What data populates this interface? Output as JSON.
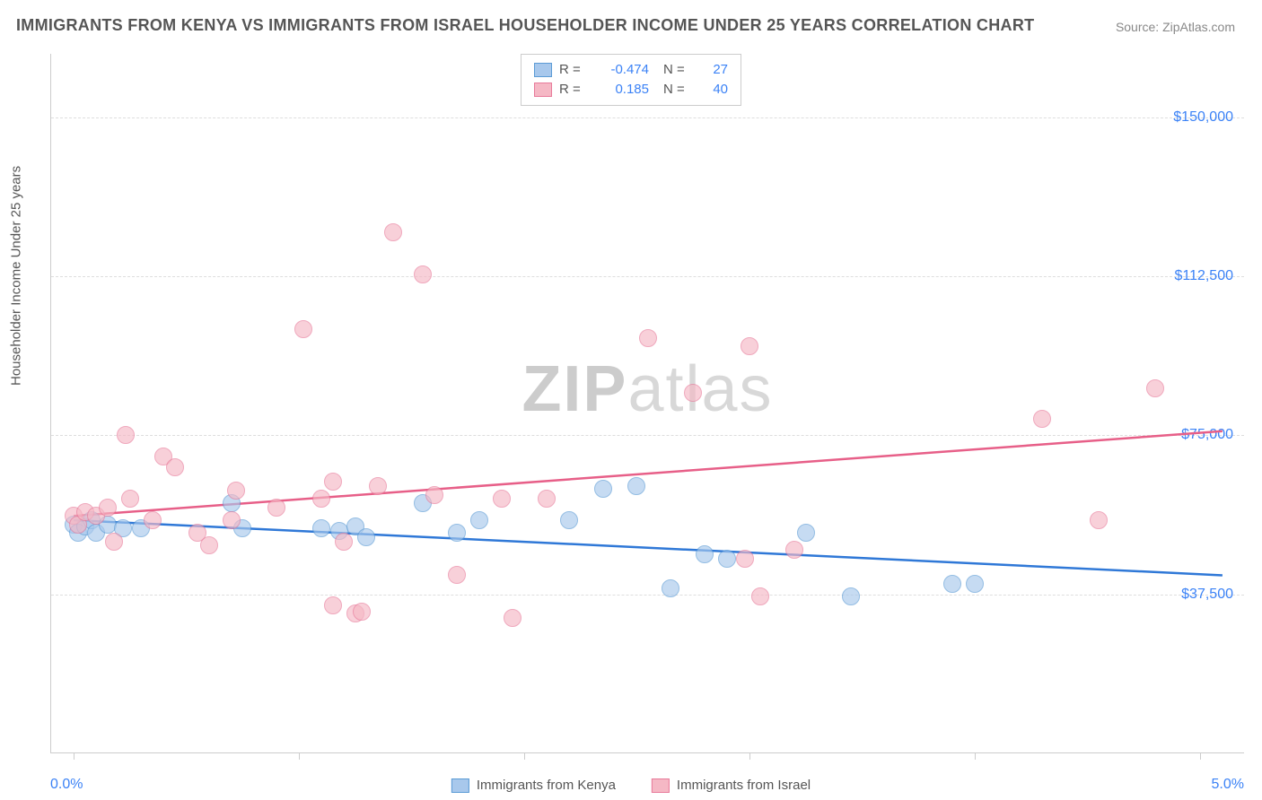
{
  "title": "IMMIGRANTS FROM KENYA VS IMMIGRANTS FROM ISRAEL HOUSEHOLDER INCOME UNDER 25 YEARS CORRELATION CHART",
  "source": "Source: ZipAtlas.com",
  "watermark_bold": "ZIP",
  "watermark_light": "atlas",
  "yaxis_title": "Householder Income Under 25 years",
  "chart": {
    "type": "scatter-with-regression",
    "background_color": "#ffffff",
    "grid_color": "#dddddd",
    "axis_color": "#cccccc",
    "tick_label_color": "#3b82f6",
    "xlim": [
      -0.1,
      5.2
    ],
    "ylim": [
      0,
      165000
    ],
    "y_ticks": [
      {
        "v": 37500,
        "label": "$37,500"
      },
      {
        "v": 75000,
        "label": "$75,000"
      },
      {
        "v": 112500,
        "label": "$112,500"
      },
      {
        "v": 150000,
        "label": "$150,000"
      }
    ],
    "x_ticks_minor": [
      0.0,
      1.0,
      2.0,
      3.0,
      4.0,
      5.0
    ],
    "x_labels": {
      "min": "0.0%",
      "max": "5.0%"
    },
    "series": [
      {
        "name": "Immigrants from Kenya",
        "fill_color": "#a8c8ec",
        "stroke_color": "#5b9bd5",
        "line_color": "#2f78d7",
        "marker_radius": 10,
        "fill_opacity": 0.65,
        "R": "-0.474",
        "N": "27",
        "regression": {
          "x1": 0.0,
          "y1": 55000,
          "x2": 5.1,
          "y2": 42000
        },
        "points": [
          [
            0.0,
            54000
          ],
          [
            0.02,
            52000
          ],
          [
            0.05,
            53500
          ],
          [
            0.08,
            55000
          ],
          [
            0.1,
            52000
          ],
          [
            0.15,
            54000
          ],
          [
            0.22,
            53000
          ],
          [
            0.3,
            53000
          ],
          [
            0.7,
            59000
          ],
          [
            0.75,
            53000
          ],
          [
            1.1,
            53000
          ],
          [
            1.18,
            52500
          ],
          [
            1.25,
            53500
          ],
          [
            1.3,
            51000
          ],
          [
            1.55,
            59000
          ],
          [
            1.7,
            52000
          ],
          [
            1.8,
            55000
          ],
          [
            2.2,
            55000
          ],
          [
            2.35,
            62500
          ],
          [
            2.5,
            63000
          ],
          [
            2.65,
            39000
          ],
          [
            2.8,
            47000
          ],
          [
            2.9,
            46000
          ],
          [
            3.25,
            52000
          ],
          [
            3.45,
            37000
          ],
          [
            3.9,
            40000
          ],
          [
            4.0,
            40000
          ]
        ]
      },
      {
        "name": "Immigrants from Israel",
        "fill_color": "#f5b8c5",
        "stroke_color": "#e87a9a",
        "line_color": "#e75f88",
        "marker_radius": 10,
        "fill_opacity": 0.65,
        "R": "0.185",
        "N": "40",
        "regression": {
          "x1": 0.0,
          "y1": 56000,
          "x2": 5.1,
          "y2": 76000
        },
        "points": [
          [
            0.0,
            56000
          ],
          [
            0.02,
            54000
          ],
          [
            0.05,
            57000
          ],
          [
            0.1,
            56000
          ],
          [
            0.15,
            58000
          ],
          [
            0.18,
            50000
          ],
          [
            0.25,
            60000
          ],
          [
            0.23,
            75000
          ],
          [
            0.35,
            55000
          ],
          [
            0.4,
            70000
          ],
          [
            0.45,
            67500
          ],
          [
            0.7,
            55000
          ],
          [
            0.72,
            62000
          ],
          [
            0.6,
            49000
          ],
          [
            1.02,
            100000
          ],
          [
            1.1,
            60000
          ],
          [
            1.15,
            64000
          ],
          [
            1.15,
            35000
          ],
          [
            1.2,
            50000
          ],
          [
            1.25,
            33000
          ],
          [
            1.28,
            33500
          ],
          [
            1.35,
            63000
          ],
          [
            1.42,
            123000
          ],
          [
            1.55,
            113000
          ],
          [
            1.6,
            61000
          ],
          [
            1.7,
            42000
          ],
          [
            1.9,
            60000
          ],
          [
            1.95,
            32000
          ],
          [
            2.1,
            60000
          ],
          [
            2.55,
            98000
          ],
          [
            2.75,
            85000
          ],
          [
            2.98,
            46000
          ],
          [
            3.0,
            96000
          ],
          [
            3.05,
            37000
          ],
          [
            3.2,
            48000
          ],
          [
            4.3,
            79000
          ],
          [
            4.8,
            86000
          ],
          [
            4.55,
            55000
          ],
          [
            0.55,
            52000
          ],
          [
            0.9,
            58000
          ]
        ]
      }
    ]
  }
}
